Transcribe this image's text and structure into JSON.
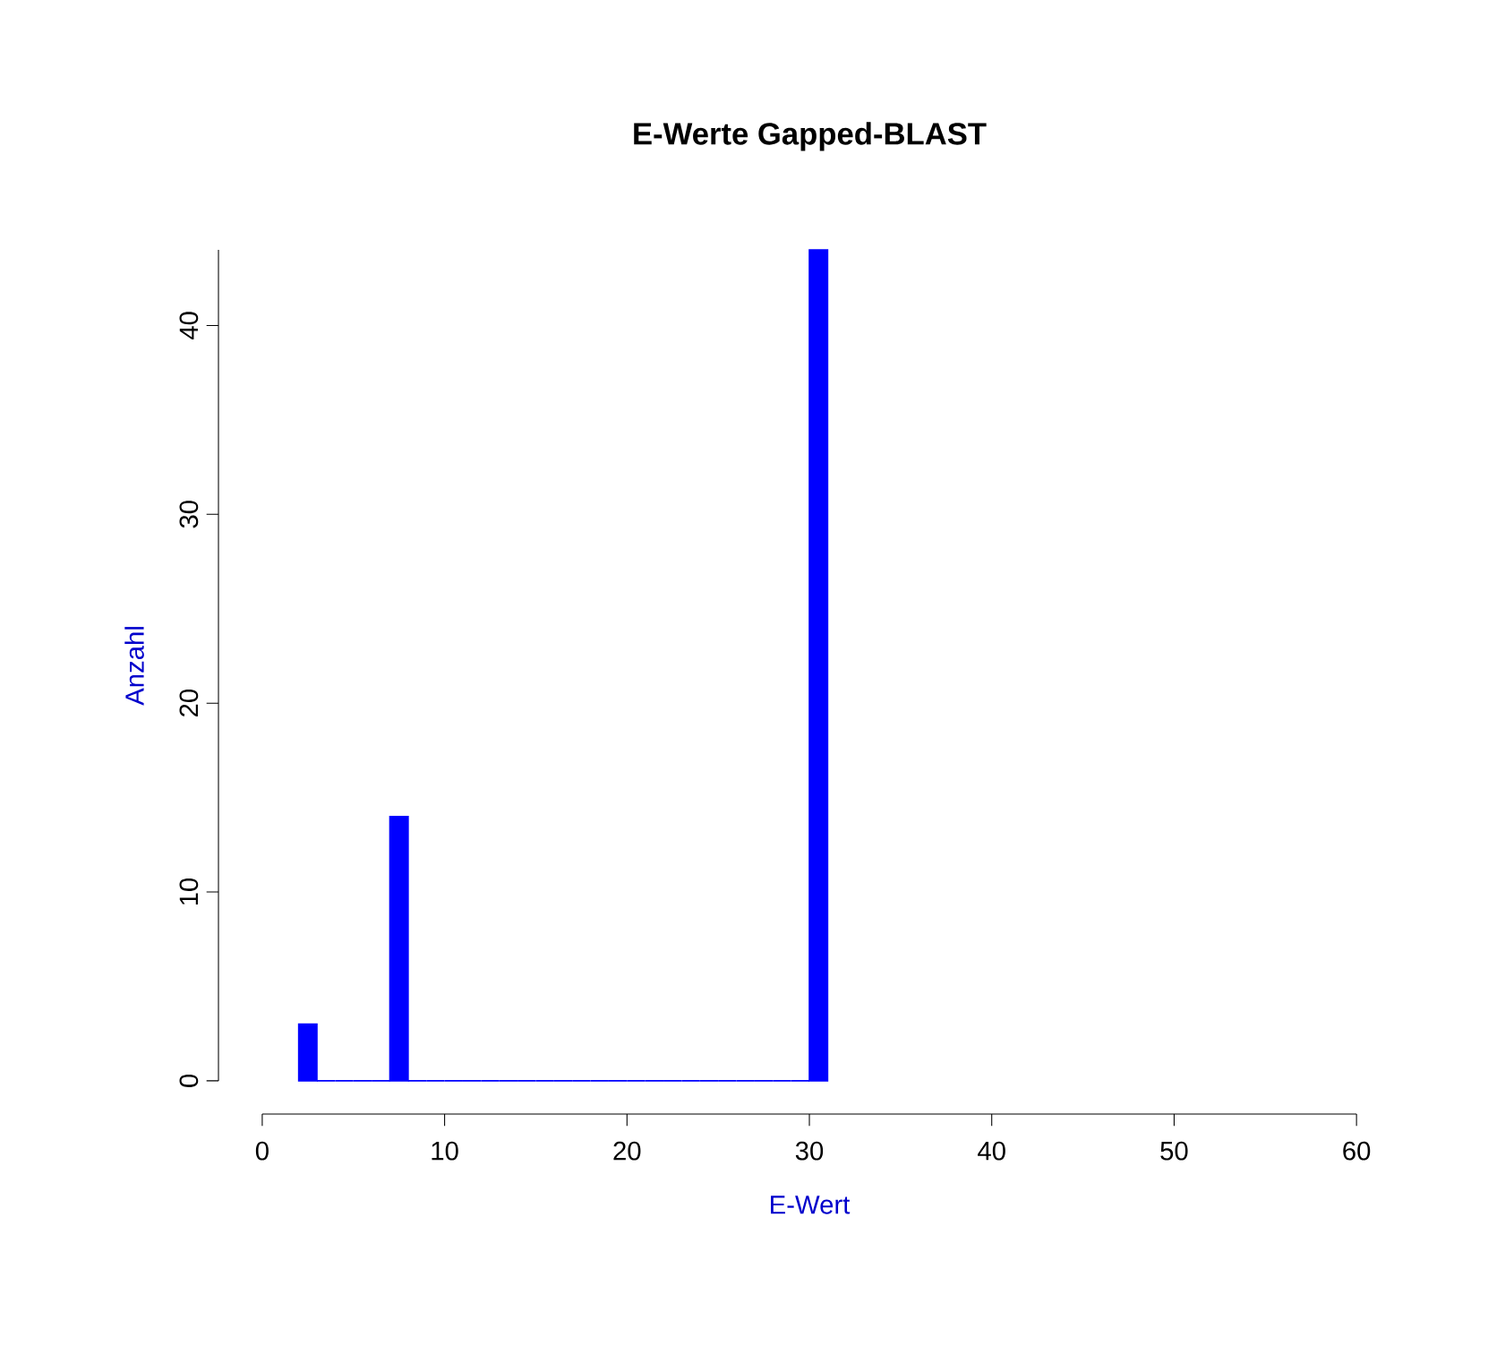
{
  "chart_data": {
    "type": "histogram",
    "title": "E-Werte Gapped-BLAST",
    "xlabel": "E-Wert",
    "ylabel": "Anzahl",
    "bins": [
      2,
      3,
      4,
      5,
      6,
      7,
      8,
      9,
      10,
      11,
      12,
      13,
      14,
      15,
      16,
      17,
      18,
      19,
      20,
      21,
      22,
      23,
      24,
      25,
      26,
      27,
      28,
      29,
      30,
      31
    ],
    "values": [
      3,
      0,
      0,
      0,
      0,
      14,
      0,
      0,
      0,
      0,
      0,
      0,
      0,
      0,
      0,
      0,
      0,
      0,
      0,
      0,
      0,
      0,
      0,
      0,
      0,
      0,
      0,
      0,
      44
    ],
    "color": "#0000ff",
    "xlim": [
      0,
      60
    ],
    "xticks": [
      0,
      10,
      20,
      30,
      40,
      50,
      60
    ],
    "ylim": [
      0,
      44
    ],
    "yticks": [
      0,
      10,
      20,
      30,
      40
    ]
  }
}
